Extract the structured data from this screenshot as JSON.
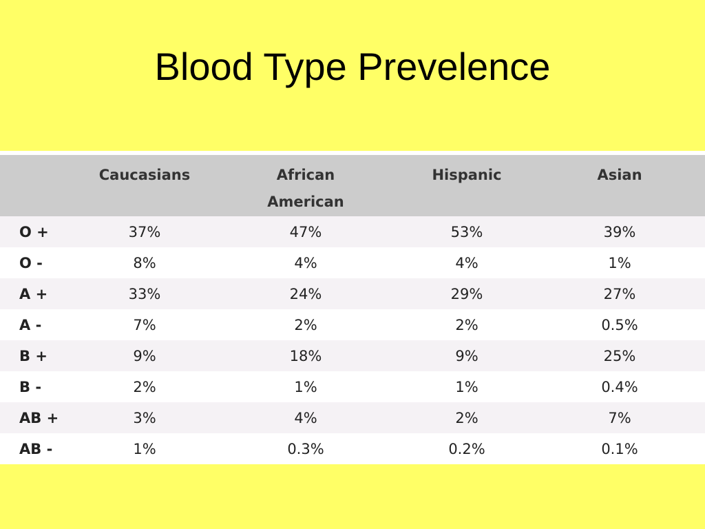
{
  "title": "Blood Type Prevelence",
  "table": {
    "headers": [
      "",
      "Caucasians",
      "African\nAmerican",
      "Hispanic",
      "Asian"
    ],
    "rows": [
      {
        "type": "O +",
        "values": [
          "37%",
          "47%",
          "53%",
          "39%"
        ]
      },
      {
        "type": "O -",
        "values": [
          "8%",
          "4%",
          "4%",
          "1%"
        ]
      },
      {
        "type": "A +",
        "values": [
          "33%",
          "24%",
          "29%",
          "27%"
        ]
      },
      {
        "type": "A -",
        "values": [
          "7%",
          "2%",
          "2%",
          "0.5%"
        ]
      },
      {
        "type": "B +",
        "values": [
          "9%",
          "18%",
          "9%",
          "25%"
        ]
      },
      {
        "type": "B -",
        "values": [
          "2%",
          "1%",
          "1%",
          "0.4%"
        ]
      },
      {
        "type": "AB +",
        "values": [
          "3%",
          "4%",
          "2%",
          "7%"
        ]
      },
      {
        "type": "AB -",
        "values": [
          "1%",
          "0.3%",
          "0.2%",
          "0.1%"
        ]
      }
    ]
  },
  "colors": {
    "background": "#ffff66",
    "header_row": "#cccccc",
    "stripe": "#f5f2f5",
    "row": "#ffffff"
  }
}
